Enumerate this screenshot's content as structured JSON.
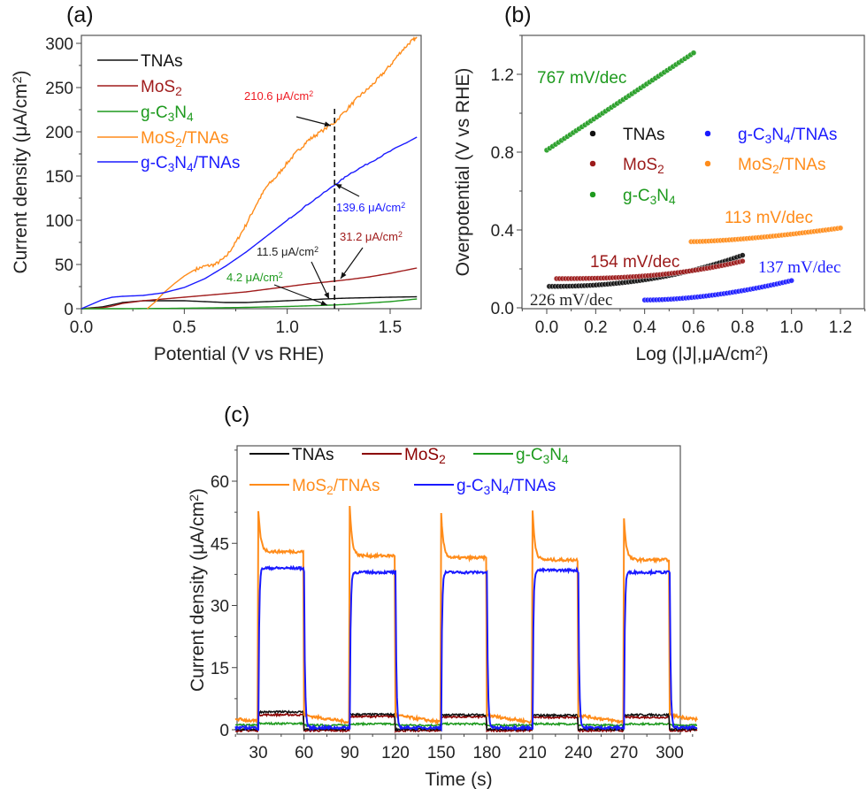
{
  "figure": {
    "panels": [
      "(a)",
      "(b)",
      "(c)"
    ]
  },
  "chart_data": [
    {
      "id": "a",
      "type": "line",
      "panel_label": "(a)",
      "title": "",
      "xlabel": "Potential (V vs RHE)",
      "ylabel": "Current density (μA/cm²)",
      "xlim": [
        0,
        1.64
      ],
      "ylim": [
        0,
        310
      ],
      "xticks": [
        0.0,
        0.5,
        1.0,
        1.5
      ],
      "xtick_labels": [
        "0.0",
        "0.5",
        "1.0",
        "1.5"
      ],
      "yticks": [
        0,
        50,
        100,
        150,
        200,
        250,
        300
      ],
      "ytick_labels": [
        "0",
        "50",
        "100",
        "150",
        "200",
        "250",
        "300"
      ],
      "legend_position": "top-left",
      "series": [
        {
          "name": "TNAs",
          "color": "#111111",
          "x": [
            0.0,
            0.1,
            0.2,
            0.3,
            0.4,
            0.5,
            0.6,
            0.7,
            0.8,
            0.9,
            1.0,
            1.1,
            1.23,
            1.3,
            1.4,
            1.5,
            1.63
          ],
          "y": [
            0,
            2,
            7,
            9,
            9,
            9,
            8,
            7,
            7,
            8,
            9,
            10,
            11.5,
            12,
            12.5,
            13,
            13.5
          ]
        },
        {
          "name": "MoS₂",
          "color": "#a01c1c",
          "x": [
            0.0,
            0.1,
            0.15,
            0.2,
            0.3,
            0.4,
            0.5,
            0.6,
            0.7,
            0.8,
            0.9,
            1.0,
            1.1,
            1.23,
            1.3,
            1.4,
            1.5,
            1.63
          ],
          "y": [
            0,
            1,
            3,
            6,
            9,
            11,
            13,
            15,
            17,
            19,
            22,
            25,
            28,
            31.2,
            33,
            36,
            40,
            46
          ]
        },
        {
          "name": "g-C₃N₄",
          "color": "#1e9a1e",
          "x": [
            0.0,
            0.2,
            0.4,
            0.6,
            0.8,
            1.0,
            1.1,
            1.23,
            1.3,
            1.4,
            1.5,
            1.63
          ],
          "y": [
            0,
            0,
            0.3,
            0.8,
            1.5,
            2.5,
            3.2,
            4.2,
            5,
            6.5,
            8,
            11
          ]
        },
        {
          "name": "MoS₂/TNAs",
          "color": "#ff8c1a",
          "x": [
            0.32,
            0.36,
            0.4,
            0.45,
            0.5,
            0.55,
            0.6,
            0.65,
            0.7,
            0.75,
            0.8,
            0.85,
            0.9,
            0.95,
            1.0,
            1.05,
            1.1,
            1.15,
            1.23,
            1.3,
            1.35,
            1.4,
            1.45,
            1.5,
            1.55,
            1.6,
            1.63
          ],
          "y": [
            0,
            8,
            18,
            28,
            37,
            44,
            48,
            50,
            58,
            75,
            95,
            118,
            138,
            150,
            165,
            178,
            190,
            198,
            210.6,
            228,
            240,
            250,
            262,
            275,
            290,
            302,
            306
          ]
        },
        {
          "name": "g-C₃N₄/TNAs",
          "color": "#1a1aff",
          "x": [
            0.0,
            0.05,
            0.1,
            0.15,
            0.2,
            0.3,
            0.4,
            0.5,
            0.6,
            0.7,
            0.8,
            0.9,
            1.0,
            1.1,
            1.23,
            1.3,
            1.4,
            1.5,
            1.63
          ],
          "y": [
            0,
            5,
            10,
            13,
            14,
            15,
            18,
            24,
            34,
            48,
            64,
            82,
            100,
            118,
            139.6,
            152,
            165,
            178,
            194
          ]
        }
      ],
      "marker_line": {
        "x": 1.23,
        "style": "dashed",
        "y_top": 226
      },
      "annotations": [
        {
          "text": "210.6 μA/cm²",
          "color": "#ee1c24",
          "value": 210.6,
          "series": "MoS₂/TNAs"
        },
        {
          "text": "139.6 μA/cm²",
          "color": "#1a1aff",
          "value": 139.6,
          "series": "g-C₃N₄/TNAs"
        },
        {
          "text": "31.2 μA/cm²",
          "color": "#a01c1c",
          "value": 31.2,
          "series": "MoS₂"
        },
        {
          "text": "11.5 μA/cm²",
          "color": "#222222",
          "value": 11.5,
          "series": "TNAs"
        },
        {
          "text": "4.2 μA/cm²",
          "color": "#1e9a1e",
          "value": 4.2,
          "series": "g-C₃N₄"
        }
      ]
    },
    {
      "id": "b",
      "type": "scatter",
      "panel_label": "(b)",
      "title": "",
      "xlabel": "Log (|J|,μA/cm²)",
      "ylabel": "Overpotential (V vs RHE)",
      "xlim": [
        -0.1,
        1.3
      ],
      "ylim": [
        0,
        1.4
      ],
      "xticks": [
        0.0,
        0.2,
        0.4,
        0.6,
        0.8,
        1.0,
        1.2
      ],
      "xtick_labels": [
        "0.0",
        "0.2",
        "0.4",
        "0.6",
        "0.8",
        "1.0",
        "1.2"
      ],
      "yticks": [
        0.0,
        0.4,
        0.8,
        1.2
      ],
      "ytick_labels": [
        "0.0",
        "0.4",
        "0.8",
        "1.2"
      ],
      "legend_position": "center",
      "series": [
        {
          "name": "TNAs",
          "color": "#111111",
          "x_range": [
            0.01,
            0.8
          ],
          "y_start": 0.11,
          "y_end": 0.27,
          "curve": 2.2,
          "slope_label": "226 mV/dec"
        },
        {
          "name": "MoS₂",
          "color": "#9b1a1a",
          "x_range": [
            0.04,
            0.8
          ],
          "y_start": 0.15,
          "y_end": 0.24,
          "curve": 2.5,
          "slope_label": "154 mV/dec"
        },
        {
          "name": "g-C₃N₄",
          "color": "#1e9a1e",
          "x_range": [
            0.0,
            0.6
          ],
          "y_start": 0.81,
          "y_end": 1.31,
          "curve": 1.0,
          "slope_label": "767 mV/dec"
        },
        {
          "name": "g-C₃N₄/TNAs",
          "color": "#1a1aff",
          "x_range": [
            0.4,
            1.0
          ],
          "y_start": 0.04,
          "y_end": 0.14,
          "curve": 1.8,
          "slope_label": "137 mV/dec"
        },
        {
          "name": "MoS₂/TNAs",
          "color": "#ff8c1a",
          "x_range": [
            0.59,
            1.2
          ],
          "y_start": 0.34,
          "y_end": 0.41,
          "curve": 1.5,
          "slope_label": "113 mV/dec"
        }
      ],
      "slope_labels": [
        {
          "text": "767 mV/dec",
          "color": "#1e9a1e"
        },
        {
          "text": "113 mV/dec",
          "color": "#ff8c1a"
        },
        {
          "text": "154 mV/dec",
          "color": "#9b1a1a"
        },
        {
          "text": "137 mV/dec",
          "color": "#1a1aff"
        },
        {
          "text": "226 mV/dec",
          "color": "#222222"
        }
      ]
    },
    {
      "id": "c",
      "type": "line",
      "panel_label": "(c)",
      "title": "",
      "xlabel": "Time (s)",
      "ylabel": "Current density (μA/cm²)",
      "xlim": [
        15,
        318
      ],
      "ylim": [
        -1,
        69
      ],
      "xticks": [
        30,
        60,
        90,
        120,
        150,
        180,
        210,
        240,
        270,
        300
      ],
      "xtick_labels": [
        "30",
        "60",
        "90",
        "120",
        "150",
        "180",
        "210",
        "240",
        "270",
        "300"
      ],
      "yticks": [
        0,
        15,
        30,
        45,
        60
      ],
      "ytick_labels": [
        "0",
        "15",
        "30",
        "45",
        "60"
      ],
      "legend_position": "top",
      "light_on_intervals": [
        [
          30,
          60
        ],
        [
          90,
          120
        ],
        [
          150,
          180
        ],
        [
          210,
          240
        ],
        [
          270,
          300
        ]
      ],
      "series": [
        {
          "name": "TNAs",
          "color": "#111111",
          "on_level": [
            4.3,
            3.7,
            3.6,
            3.5,
            3.6
          ],
          "off_level": 0.1
        },
        {
          "name": "MoS₂",
          "color": "#8b0000",
          "on_level": [
            3.6,
            3.2,
            3.1,
            3.0,
            3.0
          ],
          "off_level": -0.2
        },
        {
          "name": "g-C₃N₄",
          "color": "#1e9a1e",
          "on_level": [
            1.5,
            1.4,
            1.4,
            1.4,
            1.4
          ],
          "off_level": 1.1
        },
        {
          "name": "MoS₂/TNAs",
          "color": "#ff8c1a",
          "peak": [
            53,
            54,
            52,
            53,
            51
          ],
          "on_level": [
            43,
            42,
            41.5,
            41,
            41
          ],
          "off_start": 3.5,
          "off_end": 1.8
        },
        {
          "name": "g-C₃N₄/TNAs",
          "color": "#1a1aff",
          "on_level": [
            39,
            38,
            38,
            38.5,
            38
          ],
          "off_level": 0.5
        }
      ]
    }
  ]
}
